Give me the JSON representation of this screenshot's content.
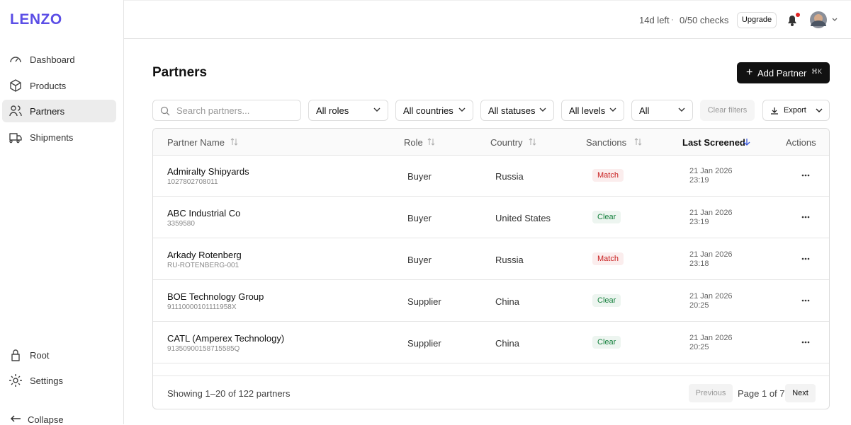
{
  "sidebar": {
    "logo": "LENZO",
    "nav": [
      "Dashboard",
      "Products",
      "Partners",
      "Shipments"
    ],
    "bottom": [
      "Root",
      "Settings"
    ],
    "collapse": "Collapse"
  },
  "topbar": {
    "trial": "14d left",
    "checks": "0/50 checks",
    "upgrade": "Upgrade"
  },
  "header": {
    "title": "Partners",
    "add_button": "Add Partner",
    "shortcut": "⌘K"
  },
  "filters": {
    "search_placeholder": "Search partners...",
    "selects": [
      "All roles",
      "All countries",
      "All statuses",
      "All levels",
      "All"
    ],
    "clear": "Clear filters",
    "export": "Export"
  },
  "table": {
    "columns": [
      "Partner Name",
      "Role",
      "Country",
      "Sanctions",
      "Last Screened",
      "Actions"
    ],
    "rows": [
      {
        "name": "Admiralty Shipyards",
        "id": "1027802708011",
        "role": "Buyer",
        "country": "Russia",
        "sanctions": "Match",
        "sanctions_color": "#c81e1e",
        "date": "21 Jan 2026",
        "time": "23:19"
      },
      {
        "name": "ABC Industrial Co",
        "id": "3359580",
        "role": "Buyer",
        "country": "United States",
        "sanctions": "Clear",
        "sanctions_color": "#15803d",
        "date": "21 Jan 2026",
        "time": "23:19"
      },
      {
        "name": "Arkady Rotenberg",
        "id": "RU-ROTENBERG-001",
        "role": "Buyer",
        "country": "Russia",
        "sanctions": "Match",
        "sanctions_color": "#c81e1e",
        "date": "21 Jan 2026",
        "time": "23:18"
      },
      {
        "name": "BOE Technology Group",
        "id": "91110000101111958X",
        "role": "Supplier",
        "country": "China",
        "sanctions": "Clear",
        "sanctions_color": "#15803d",
        "date": "21 Jan 2026",
        "time": "20:25"
      },
      {
        "name": "CATL (Amperex Technology)",
        "id": "91350900158715585Q",
        "role": "Supplier",
        "country": "China",
        "sanctions": "Clear",
        "sanctions_color": "#15803d",
        "date": "21 Jan 2026",
        "time": "20:25"
      }
    ]
  },
  "footer": {
    "showing": "Showing 1–20 of 122 partners",
    "previous": "Previous",
    "page": "Page 1 of 7",
    "next": "Next"
  }
}
